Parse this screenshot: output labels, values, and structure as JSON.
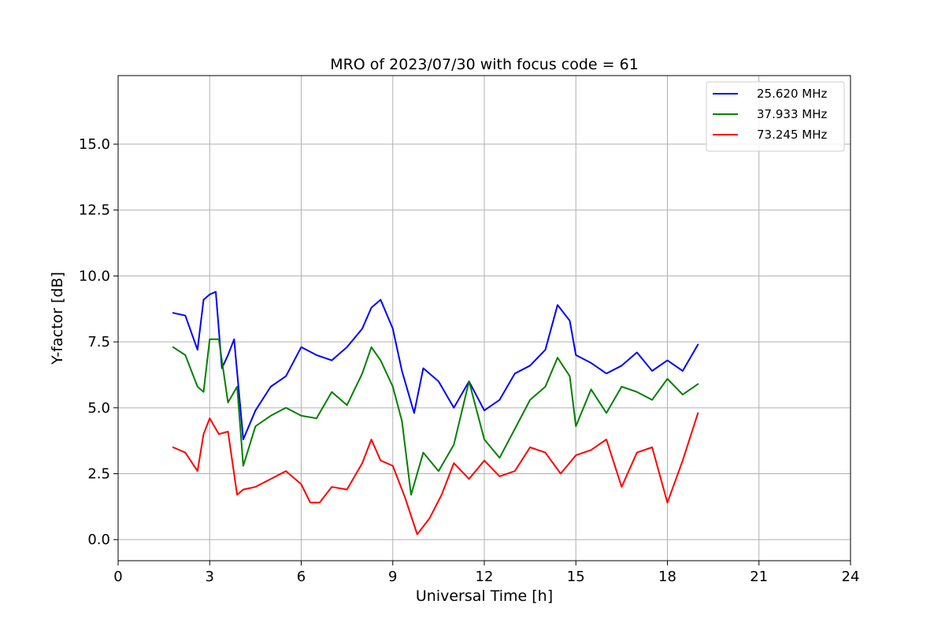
{
  "chart_data": {
    "type": "line",
    "title": "MRO of 2023/07/30 with focus code = 61",
    "xlabel": "Universal Time [h]",
    "ylabel": "Y-factor [dB]",
    "xlim": [
      0,
      24
    ],
    "ylim": [
      -0.8,
      17.6
    ],
    "xticks": [
      0,
      3,
      6,
      9,
      12,
      15,
      18,
      21,
      24
    ],
    "xtick_labels": [
      "0",
      "3",
      "6",
      "9",
      "12",
      "15",
      "18",
      "21",
      "24"
    ],
    "yticks": [
      0,
      2.5,
      5,
      7.5,
      10,
      12.5,
      15
    ],
    "ytick_labels": [
      "0.0",
      "2.5",
      "5.0",
      "7.5",
      "10.0",
      "12.5",
      "15.0"
    ],
    "grid": true,
    "legend_position": "top-right",
    "series": [
      {
        "name": "25.620 MHz",
        "color": "#0000ff",
        "x": [
          1.8,
          2.2,
          2.6,
          2.8,
          3.0,
          3.2,
          3.4,
          3.6,
          3.8,
          4.1,
          4.5,
          5.0,
          5.5,
          6.0,
          6.5,
          7.0,
          7.5,
          8.0,
          8.3,
          8.6,
          9.0,
          9.3,
          9.7,
          10.0,
          10.5,
          11.0,
          11.5,
          12.0,
          12.5,
          13.0,
          13.5,
          14.0,
          14.4,
          14.8,
          15.0,
          15.5,
          16.0,
          16.5,
          17.0,
          17.5,
          18.0,
          18.5,
          19.0
        ],
        "y": [
          8.6,
          8.5,
          7.2,
          9.1,
          9.3,
          9.4,
          6.5,
          7.0,
          7.6,
          3.8,
          4.9,
          5.8,
          6.2,
          7.3,
          7.0,
          6.8,
          7.3,
          8.0,
          8.8,
          9.1,
          8.0,
          6.4,
          4.8,
          6.5,
          6.0,
          5.0,
          6.0,
          4.9,
          5.3,
          6.3,
          6.6,
          7.2,
          8.9,
          8.3,
          7.0,
          6.7,
          6.3,
          6.6,
          7.1,
          6.4,
          6.8,
          6.4,
          7.4
        ]
      },
      {
        "name": "37.933 MHz",
        "color": "#008000",
        "x": [
          1.8,
          2.2,
          2.6,
          2.8,
          3.0,
          3.3,
          3.6,
          3.9,
          4.1,
          4.5,
          5.0,
          5.5,
          6.0,
          6.5,
          7.0,
          7.5,
          8.0,
          8.3,
          8.6,
          9.0,
          9.3,
          9.6,
          10.0,
          10.5,
          11.0,
          11.5,
          12.0,
          12.5,
          13.0,
          13.5,
          14.0,
          14.4,
          14.8,
          15.0,
          15.5,
          16.0,
          16.5,
          17.0,
          17.5,
          18.0,
          18.5,
          19.0
        ],
        "y": [
          7.3,
          7.0,
          5.8,
          5.6,
          7.6,
          7.6,
          5.2,
          5.8,
          2.8,
          4.3,
          4.7,
          5.0,
          4.7,
          4.6,
          5.6,
          5.1,
          6.3,
          7.3,
          6.8,
          5.8,
          4.5,
          1.7,
          3.3,
          2.6,
          3.6,
          6.0,
          3.8,
          3.1,
          4.2,
          5.3,
          5.8,
          6.9,
          6.2,
          4.3,
          5.7,
          4.8,
          5.8,
          5.6,
          5.3,
          6.1,
          5.5,
          5.9
        ]
      },
      {
        "name": "73.245 MHz",
        "color": "#ff0000",
        "x": [
          1.8,
          2.2,
          2.6,
          2.8,
          3.0,
          3.3,
          3.6,
          3.9,
          4.1,
          4.5,
          5.0,
          5.5,
          6.0,
          6.3,
          6.6,
          7.0,
          7.5,
          8.0,
          8.3,
          8.6,
          9.0,
          9.4,
          9.8,
          10.2,
          10.6,
          11.0,
          11.5,
          12.0,
          12.5,
          13.0,
          13.5,
          14.0,
          14.5,
          15.0,
          15.5,
          16.0,
          16.5,
          17.0,
          17.5,
          18.0,
          18.5,
          19.0
        ],
        "y": [
          3.5,
          3.3,
          2.6,
          4.0,
          4.6,
          4.0,
          4.1,
          1.7,
          1.9,
          2.0,
          2.3,
          2.6,
          2.1,
          1.4,
          1.4,
          2.0,
          1.9,
          2.9,
          3.8,
          3.0,
          2.8,
          1.6,
          0.2,
          0.8,
          1.7,
          2.9,
          2.3,
          3.0,
          2.4,
          2.6,
          3.5,
          3.3,
          2.5,
          3.2,
          3.4,
          3.8,
          2.0,
          3.3,
          3.5,
          1.4,
          3.0,
          4.8
        ]
      }
    ]
  }
}
